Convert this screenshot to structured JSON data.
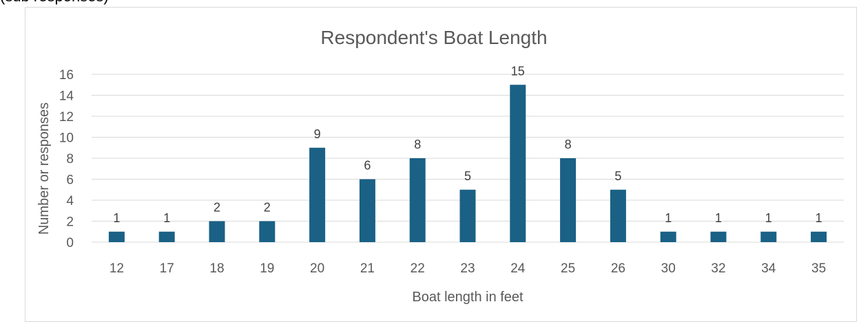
{
  "header_fragment": "(sub responses)",
  "colors": {
    "bar": "#1a6185",
    "grid": "#d9d9d9",
    "text": "#595959"
  },
  "chart_data": {
    "type": "bar",
    "title": "Respondent's Boat Length",
    "xlabel": "Boat length in feet",
    "ylabel": "Number or responses",
    "categories": [
      "12",
      "17",
      "18",
      "19",
      "20",
      "21",
      "22",
      "23",
      "24",
      "25",
      "26",
      "30",
      "32",
      "34",
      "35"
    ],
    "values": [
      1,
      1,
      2,
      2,
      9,
      6,
      8,
      5,
      15,
      8,
      5,
      1,
      1,
      1,
      1
    ],
    "ylim": [
      0,
      16
    ],
    "yticks": [
      0,
      2,
      4,
      6,
      8,
      10,
      12,
      14,
      16
    ],
    "grid": true,
    "legend": "none",
    "data_labels": true
  }
}
